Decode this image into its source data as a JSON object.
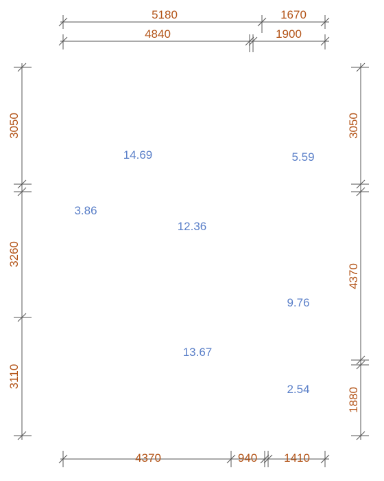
{
  "colors": {
    "dimension": "#b35418",
    "area": "#5a7fc8",
    "line": "#555555"
  },
  "dimensions": {
    "top_row1": [
      "5180",
      "1670"
    ],
    "top_row2": [
      "4840",
      "1900"
    ],
    "bottom": [
      "4370",
      "940",
      "1410"
    ],
    "left": [
      "3050",
      "3260",
      "3110"
    ],
    "right": [
      "3050",
      "4370",
      "1880"
    ]
  },
  "areas": [
    "14.69",
    "5.59",
    "3.86",
    "12.36",
    "9.76",
    "13.67",
    "2.54"
  ]
}
